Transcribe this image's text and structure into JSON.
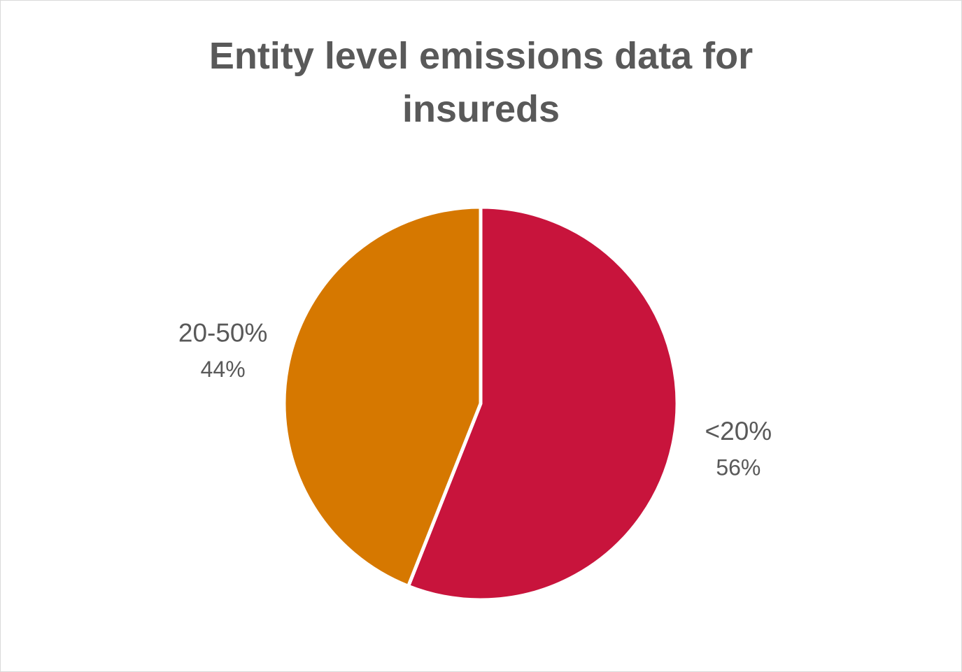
{
  "chart_data": {
    "type": "pie",
    "title": "Entity level emissions data for insureds",
    "categories": [
      "<20%",
      "20-50%"
    ],
    "values": [
      56,
      44
    ],
    "value_labels": [
      "56%",
      "44%"
    ],
    "colors": [
      "#c8143c",
      "#d67800"
    ]
  }
}
